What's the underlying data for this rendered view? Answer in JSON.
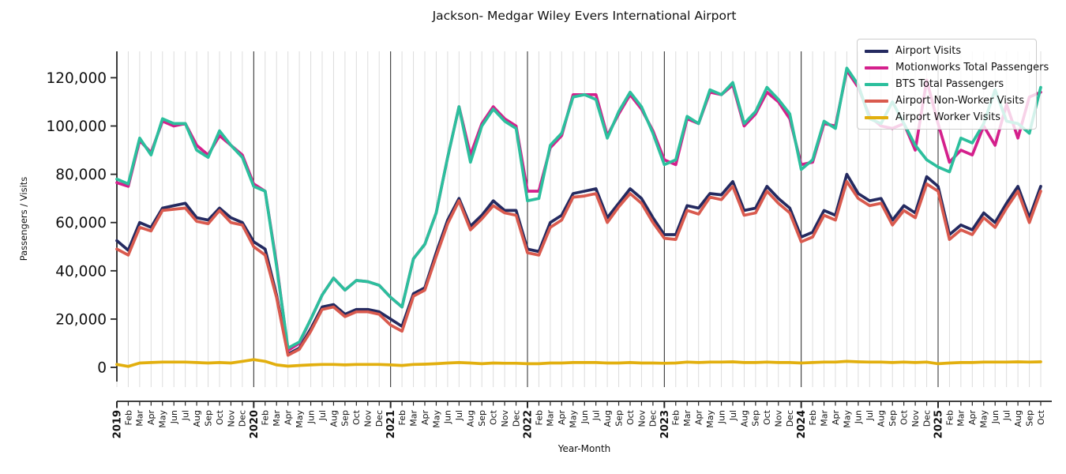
{
  "chart_data": {
    "type": "line",
    "title": "Jackson- Medgar Wiley Evers International Airport",
    "xlabel": "Year-Month",
    "ylabel": "Passengers / Visits",
    "ylim": [
      0,
      131000
    ],
    "grid": "vertical-monthly",
    "legend_position": "upper-right",
    "x_labels": [
      "2019",
      "Feb",
      "Mar",
      "Apr",
      "May",
      "Jun",
      "Jul",
      "Aug",
      "Sep",
      "Oct",
      "Nov",
      "Dec",
      "2020",
      "Feb",
      "Mar",
      "Apr",
      "May",
      "Jun",
      "Jul",
      "Aug",
      "Sep",
      "Oct",
      "Nov",
      "Dec",
      "2021",
      "Feb",
      "Mar",
      "Apr",
      "May",
      "Jun",
      "Jul",
      "Aug",
      "Sep",
      "Oct",
      "Nov",
      "Dec",
      "2022",
      "Feb",
      "Mar",
      "Apr",
      "May",
      "Jun",
      "Jul",
      "Aug",
      "Sep",
      "Oct",
      "Nov",
      "Dec",
      "2023",
      "Feb",
      "Mar",
      "Apr",
      "May",
      "Jun",
      "Jul",
      "Aug",
      "Sep",
      "Oct",
      "Nov",
      "Dec",
      "2024",
      "Feb",
      "Mar",
      "Apr",
      "May",
      "Jun",
      "Jul",
      "Aug",
      "Sep",
      "Oct",
      "Nov",
      "Dec",
      "2025",
      "Feb",
      "Mar",
      "Apr",
      "May",
      "Jun",
      "Jul",
      "Aug",
      "Sep",
      "Oct"
    ],
    "year_line_indices": [
      12,
      24,
      36,
      48,
      60,
      72
    ],
    "y_ticks": [
      {
        "value": 0,
        "label": "0"
      },
      {
        "value": 20000,
        "label": "20,000"
      },
      {
        "value": 40000,
        "label": "40,000"
      },
      {
        "value": 60000,
        "label": "60,000"
      },
      {
        "value": 80000,
        "label": "80,000"
      },
      {
        "value": 100000,
        "label": "100,000"
      },
      {
        "value": 120000,
        "label": "120,000"
      }
    ],
    "series": [
      {
        "name": "Airport Visits",
        "color": "#242a60",
        "values": [
          52500,
          48500,
          60000,
          58000,
          66000,
          67000,
          68000,
          62000,
          61000,
          66000,
          62000,
          60000,
          52000,
          49000,
          30000,
          5500,
          8000,
          16000,
          25000,
          26000,
          22000,
          24000,
          24000,
          23000,
          20000,
          17000,
          30500,
          33000,
          47500,
          61000,
          70000,
          58500,
          63000,
          69000,
          65000,
          65000,
          49000,
          48000,
          60000,
          63000,
          72000,
          73000,
          74000,
          62000,
          68000,
          74000,
          70000,
          62000,
          55000,
          55000,
          67000,
          66000,
          72000,
          71500,
          77000,
          65000,
          66000,
          75000,
          70000,
          66000,
          54000,
          56000,
          65000,
          63000,
          80000,
          72000,
          69000,
          70000,
          61000,
          67000,
          64000,
          79000,
          75000,
          55000,
          59000,
          57000,
          64000,
          60000,
          68000,
          75000,
          62000,
          75000
        ]
      },
      {
        "name": "Motionworks Total Passengers",
        "color": "#d4208c",
        "values": [
          76500,
          75000,
          94000,
          89000,
          102000,
          100000,
          101000,
          92000,
          88000,
          96000,
          92000,
          88000,
          76000,
          73000,
          43000,
          7000,
          10000,
          20000,
          30000,
          37000,
          32000,
          36000,
          35500,
          34000,
          29000,
          25000,
          45000,
          51000,
          64000,
          87000,
          108000,
          88000,
          101000,
          108000,
          103000,
          100000,
          73000,
          73000,
          91000,
          96000,
          113000,
          113000,
          113000,
          96000,
          105000,
          113000,
          107000,
          98000,
          86000,
          84000,
          103000,
          101000,
          114000,
          113000,
          117000,
          100000,
          105000,
          114000,
          110000,
          103000,
          84000,
          85000,
          101000,
          100000,
          123000,
          116000,
          104000,
          100000,
          99000,
          101000,
          90000,
          119000,
          101000,
          85000,
          90000,
          88000,
          100000,
          92000,
          109000,
          95000,
          112000,
          114000
        ]
      },
      {
        "name": "BTS Total Passengers",
        "color": "#2cbf9d",
        "values": [
          78000,
          76000,
          95000,
          88000,
          103000,
          101000,
          101000,
          90000,
          87000,
          98000,
          92000,
          87000,
          75000,
          73000,
          42000,
          8000,
          10500,
          20000,
          30000,
          37000,
          32000,
          36000,
          35500,
          34000,
          29000,
          25000,
          45000,
          51000,
          64000,
          87000,
          108000,
          85000,
          100000,
          107000,
          102000,
          99000,
          69000,
          70000,
          92000,
          97000,
          112000,
          113000,
          111000,
          95000,
          106000,
          114000,
          108000,
          97000,
          84000,
          86000,
          104000,
          101000,
          115000,
          113000,
          118000,
          101000,
          106000,
          116000,
          111000,
          105000,
          82000,
          86000,
          102000,
          99000,
          124000,
          117000,
          103000,
          101000,
          110000,
          101000,
          92000,
          86000,
          83000,
          81000,
          95000,
          93000,
          101000,
          115000,
          102000,
          101000,
          97000,
          116000
        ]
      },
      {
        "name": "Airport Non-Worker Visits",
        "color": "#d95a4e",
        "values": [
          49000,
          46500,
          58000,
          56500,
          65000,
          65500,
          66000,
          60500,
          59500,
          65000,
          60000,
          59000,
          50000,
          46500,
          29000,
          5000,
          7500,
          15000,
          24000,
          25000,
          21000,
          23000,
          23000,
          22000,
          17500,
          15000,
          29500,
          32000,
          46000,
          59500,
          69000,
          57000,
          61500,
          67000,
          64000,
          63000,
          47500,
          46500,
          58000,
          61000,
          70500,
          71000,
          72000,
          60000,
          66500,
          72000,
          68000,
          60000,
          53500,
          53000,
          65000,
          63500,
          70500,
          69500,
          75000,
          63000,
          64000,
          73000,
          68000,
          64000,
          52000,
          54000,
          63000,
          61000,
          77000,
          70000,
          67000,
          68000,
          59000,
          65000,
          62000,
          76000,
          73000,
          53000,
          57000,
          55000,
          62000,
          58000,
          66000,
          73000,
          60000,
          73000
        ]
      },
      {
        "name": "Airport Worker Visits",
        "color": "#e2af0e",
        "values": [
          1200,
          400,
          1800,
          2000,
          2200,
          2200,
          2200,
          2000,
          1800,
          2000,
          1800,
          2500,
          3200,
          2500,
          1000,
          500,
          800,
          1000,
          1200,
          1200,
          1000,
          1200,
          1200,
          1200,
          1000,
          800,
          1200,
          1300,
          1500,
          1800,
          2000,
          1800,
          1500,
          1800,
          1700,
          1700,
          1500,
          1500,
          1800,
          1800,
          2000,
          2000,
          2000,
          1800,
          1800,
          2000,
          1800,
          1800,
          1700,
          1800,
          2200,
          2000,
          2200,
          2200,
          2300,
          2000,
          2000,
          2200,
          2000,
          2000,
          1800,
          2000,
          2200,
          2200,
          2500,
          2300,
          2200,
          2200,
          2000,
          2200,
          2000,
          2200,
          1500,
          1800,
          2000,
          2000,
          2200,
          2200,
          2200,
          2300,
          2200,
          2300
        ]
      }
    ]
  }
}
